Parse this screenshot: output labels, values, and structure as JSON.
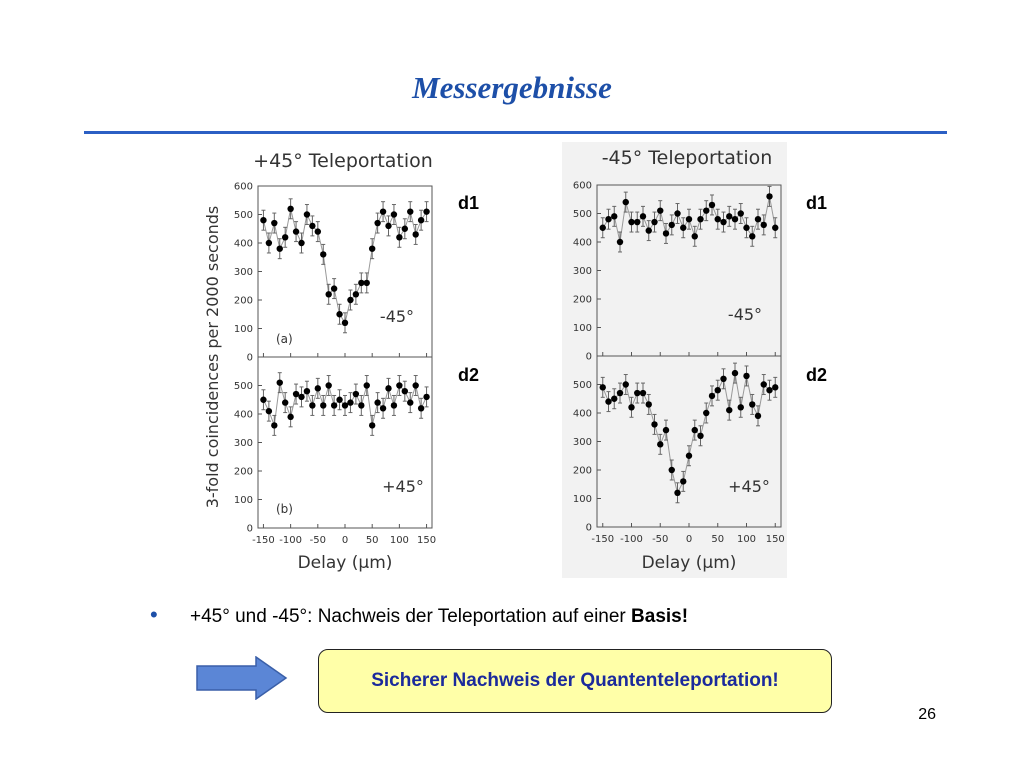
{
  "slide": {
    "title": "Messergebnisse",
    "bullet": "+45° und -45°: Nachweis der Teleportation auf einer ",
    "bullet_bold": "Basis!",
    "conclusion": "Sicherer Nachweis der Quantenteleportation!",
    "page_number": "26"
  },
  "chart_data": [
    {
      "type": "line",
      "title": "+45° Teleportation",
      "xlabel": "Delay (µm)",
      "ylabel": "3-fold coincidences per 2000 seconds",
      "xlim": [
        -160,
        160
      ],
      "ylim": [
        0,
        600
      ],
      "xticks": [
        "-150",
        "-100",
        "-50",
        "0",
        "50",
        "100",
        "150"
      ],
      "yticks": [
        "0",
        "100",
        "200",
        "300",
        "400",
        "500",
        "600"
      ],
      "detector_labels": [
        "d1",
        "d2"
      ],
      "panels": [
        {
          "detector": "d1",
          "label": "(a)",
          "annotation": "-45°",
          "x": [
            -150,
            -140,
            -130,
            -120,
            -110,
            -100,
            -90,
            -80,
            -70,
            -60,
            -50,
            -40,
            -30,
            -20,
            -10,
            0,
            10,
            20,
            30,
            40,
            50,
            60,
            70,
            80,
            90,
            100,
            110,
            120,
            130,
            140,
            150
          ],
          "y": [
            480,
            400,
            470,
            380,
            420,
            520,
            440,
            400,
            500,
            460,
            440,
            360,
            220,
            240,
            150,
            120,
            200,
            220,
            260,
            260,
            380,
            470,
            510,
            460,
            500,
            420,
            450,
            510,
            430,
            480,
            510
          ],
          "err": 35
        },
        {
          "detector": "d2",
          "label": "(b)",
          "annotation": "+45°",
          "x": [
            -150,
            -140,
            -130,
            -120,
            -110,
            -100,
            -90,
            -80,
            -70,
            -60,
            -50,
            -40,
            -30,
            -20,
            -10,
            0,
            10,
            20,
            30,
            40,
            50,
            60,
            70,
            80,
            90,
            100,
            110,
            120,
            130,
            140,
            150
          ],
          "y": [
            450,
            410,
            360,
            510,
            440,
            390,
            470,
            460,
            480,
            430,
            490,
            430,
            500,
            430,
            450,
            430,
            440,
            470,
            430,
            500,
            360,
            440,
            420,
            490,
            430,
            500,
            480,
            440,
            500,
            420,
            460
          ],
          "err": 35
        }
      ]
    },
    {
      "type": "line",
      "title": "-45° Teleportation",
      "xlabel": "Delay (µm)",
      "ylabel": "",
      "xlim": [
        -160,
        160
      ],
      "ylim": [
        0,
        600
      ],
      "xticks": [
        "-150",
        "-100",
        "-50",
        "0",
        "50",
        "100",
        "150"
      ],
      "yticks": [
        "0",
        "100",
        "200",
        "300",
        "400",
        "500",
        "600"
      ],
      "detector_labels": [
        "d1",
        "d2"
      ],
      "panels": [
        {
          "detector": "d1",
          "label": "",
          "annotation": "-45°",
          "x": [
            -150,
            -140,
            -130,
            -120,
            -110,
            -100,
            -90,
            -80,
            -70,
            -60,
            -50,
            -40,
            -30,
            -20,
            -10,
            0,
            10,
            20,
            30,
            40,
            50,
            60,
            70,
            80,
            90,
            100,
            110,
            120,
            130,
            140,
            150
          ],
          "y": [
            450,
            480,
            490,
            400,
            540,
            470,
            470,
            490,
            440,
            470,
            510,
            430,
            460,
            500,
            450,
            480,
            420,
            480,
            510,
            530,
            480,
            470,
            490,
            480,
            500,
            450,
            420,
            480,
            460,
            560,
            450
          ],
          "err": 35
        },
        {
          "detector": "d2",
          "label": "",
          "annotation": "+45°",
          "x": [
            -150,
            -140,
            -130,
            -120,
            -110,
            -100,
            -90,
            -80,
            -70,
            -60,
            -50,
            -40,
            -30,
            -20,
            -10,
            0,
            10,
            20,
            30,
            40,
            50,
            60,
            70,
            80,
            90,
            100,
            110,
            120,
            130,
            140,
            150
          ],
          "y": [
            490,
            440,
            450,
            470,
            500,
            420,
            470,
            470,
            430,
            360,
            290,
            340,
            200,
            120,
            160,
            250,
            340,
            320,
            400,
            460,
            480,
            520,
            410,
            540,
            420,
            530,
            430,
            390,
            500,
            480,
            490
          ],
          "err": 35
        }
      ]
    }
  ]
}
